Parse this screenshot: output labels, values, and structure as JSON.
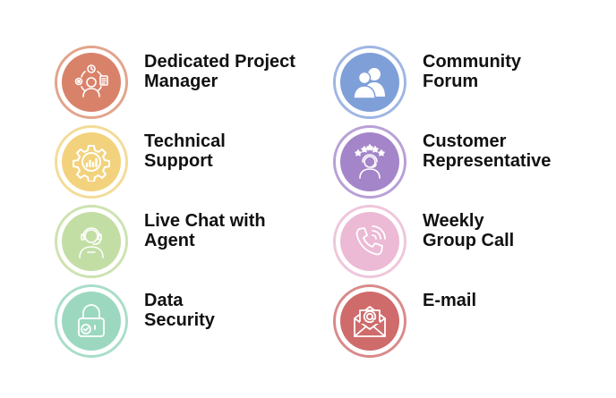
{
  "features": [
    {
      "line1": "Dedicated  Project",
      "line2": "Manager",
      "icon": "project-manager-icon",
      "ring": "#e3a48c",
      "fill": "#d9826a"
    },
    {
      "line1": "Community",
      "line2": "Forum",
      "icon": "community-forum-icon",
      "ring": "#9fb6e3",
      "fill": "#7f9fd8"
    },
    {
      "line1": "Technical",
      "line2": "Support",
      "icon": "technical-support-icon",
      "ring": "#f3dc98",
      "fill": "#f3d27d"
    },
    {
      "line1": "Customer",
      "line2": "Representative",
      "icon": "customer-representative-icon",
      "ring": "#b9a0d6",
      "fill": "#a485c9"
    },
    {
      "line1": "Live Chat with",
      "line2": "Agent",
      "icon": "live-chat-agent-icon",
      "ring": "#cde3b0",
      "fill": "#c2dea5"
    },
    {
      "line1": "Weekly",
      "line2": "Group Call",
      "icon": "phone-call-icon",
      "ring": "#efc6dc",
      "fill": "#ecbad5"
    },
    {
      "line1": "Data",
      "line2": "Security",
      "icon": "padlock-check-icon",
      "ring": "#a9dec9",
      "fill": "#9cd8c0"
    },
    {
      "line1": "E-mail",
      "line2": "",
      "icon": "email-envelope-icon",
      "ring": "#d98a8a",
      "fill": "#cf6b6b"
    }
  ]
}
